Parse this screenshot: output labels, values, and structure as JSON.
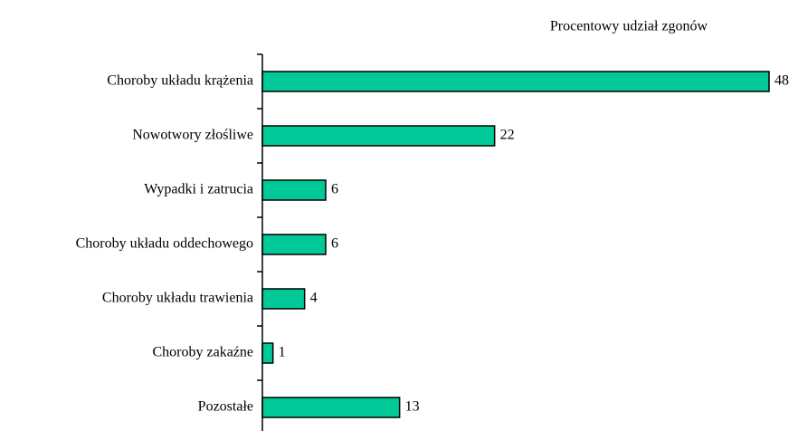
{
  "chart_data": {
    "type": "bar",
    "orientation": "horizontal",
    "title": "Procentowy udział zgonów",
    "categories": [
      "Choroby układu krążenia",
      "Nowotwory złośliwe",
      "Wypadki i zatrucia",
      "Choroby układu oddechowego",
      "Choroby układu trawienia",
      "Choroby zakaźne",
      "Pozostałe"
    ],
    "values": [
      48,
      22,
      6,
      6,
      4,
      1,
      13
    ],
    "color": "#00c896"
  }
}
